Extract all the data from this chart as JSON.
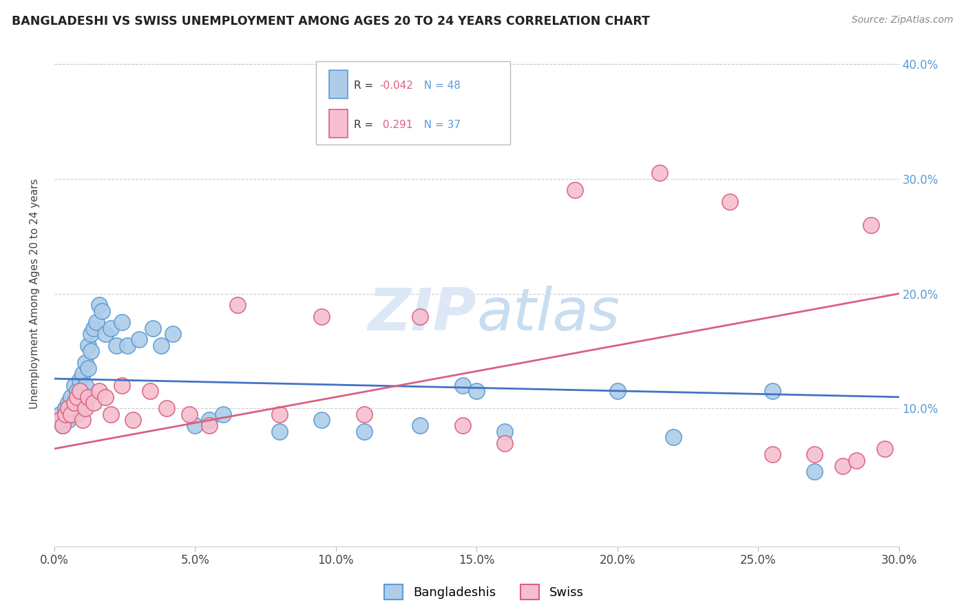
{
  "title": "BANGLADESHI VS SWISS UNEMPLOYMENT AMONG AGES 20 TO 24 YEARS CORRELATION CHART",
  "source": "Source: ZipAtlas.com",
  "ylabel": "Unemployment Among Ages 20 to 24 years",
  "xlim": [
    0.0,
    0.3
  ],
  "ylim": [
    -0.02,
    0.42
  ],
  "xticks": [
    0.0,
    0.05,
    0.1,
    0.15,
    0.2,
    0.25,
    0.3
  ],
  "yticks_right": [
    0.1,
    0.2,
    0.3,
    0.4
  ],
  "yticks_grid": [
    0.1,
    0.2,
    0.3,
    0.4
  ],
  "bangladeshi_R": -0.042,
  "bangladeshi_N": 48,
  "swiss_R": 0.291,
  "swiss_N": 37,
  "bangladeshi_color": "#aecce8",
  "bangladeshi_edge_color": "#5b9bd5",
  "swiss_color": "#f5bfcf",
  "swiss_edge_color": "#d96080",
  "trend_bangladeshi_color": "#4472c4",
  "trend_swiss_color": "#d96080",
  "watermark_color": "#dce8f5",
  "bangladeshi_x": [
    0.002,
    0.003,
    0.004,
    0.005,
    0.005,
    0.006,
    0.006,
    0.007,
    0.007,
    0.008,
    0.008,
    0.009,
    0.009,
    0.01,
    0.01,
    0.011,
    0.011,
    0.012,
    0.012,
    0.013,
    0.013,
    0.014,
    0.015,
    0.016,
    0.017,
    0.018,
    0.02,
    0.022,
    0.024,
    0.026,
    0.03,
    0.035,
    0.038,
    0.042,
    0.05,
    0.055,
    0.06,
    0.08,
    0.095,
    0.11,
    0.13,
    0.145,
    0.15,
    0.16,
    0.2,
    0.22,
    0.255,
    0.27
  ],
  "bangladeshi_y": [
    0.095,
    0.085,
    0.1,
    0.09,
    0.105,
    0.11,
    0.095,
    0.12,
    0.1,
    0.115,
    0.095,
    0.125,
    0.1,
    0.13,
    0.11,
    0.14,
    0.12,
    0.155,
    0.135,
    0.165,
    0.15,
    0.17,
    0.175,
    0.19,
    0.185,
    0.165,
    0.17,
    0.155,
    0.175,
    0.155,
    0.16,
    0.17,
    0.155,
    0.165,
    0.085,
    0.09,
    0.095,
    0.08,
    0.09,
    0.08,
    0.085,
    0.12,
    0.115,
    0.08,
    0.115,
    0.075,
    0.115,
    0.045
  ],
  "swiss_x": [
    0.002,
    0.003,
    0.004,
    0.005,
    0.006,
    0.007,
    0.008,
    0.009,
    0.01,
    0.011,
    0.012,
    0.014,
    0.016,
    0.018,
    0.02,
    0.024,
    0.028,
    0.034,
    0.04,
    0.048,
    0.055,
    0.065,
    0.08,
    0.095,
    0.11,
    0.13,
    0.145,
    0.16,
    0.185,
    0.215,
    0.24,
    0.255,
    0.27,
    0.28,
    0.285,
    0.29,
    0.295
  ],
  "swiss_y": [
    0.09,
    0.085,
    0.095,
    0.1,
    0.095,
    0.105,
    0.11,
    0.115,
    0.09,
    0.1,
    0.11,
    0.105,
    0.115,
    0.11,
    0.095,
    0.12,
    0.09,
    0.115,
    0.1,
    0.095,
    0.085,
    0.19,
    0.095,
    0.18,
    0.095,
    0.18,
    0.085,
    0.07,
    0.29,
    0.305,
    0.28,
    0.06,
    0.06,
    0.05,
    0.055,
    0.26,
    0.065
  ],
  "bd_trend_start_y": 0.126,
  "bd_trend_end_y": 0.11,
  "sw_trend_start_y": 0.065,
  "sw_trend_end_y": 0.2
}
